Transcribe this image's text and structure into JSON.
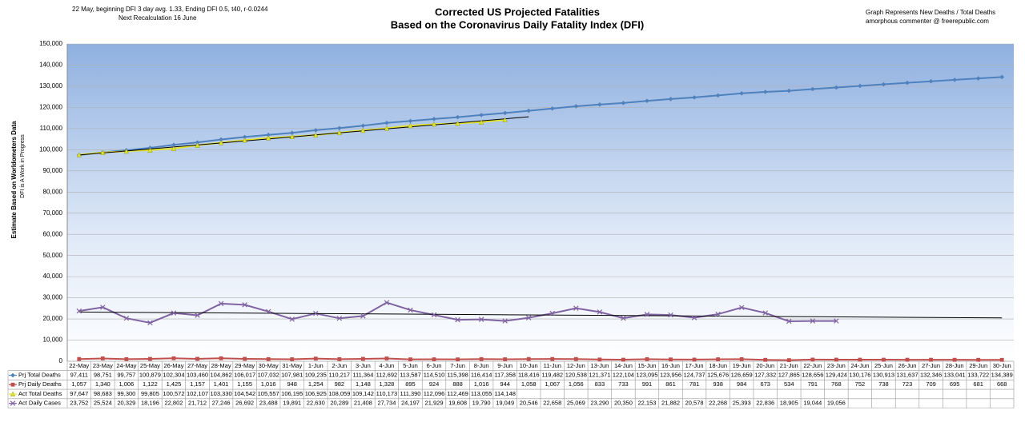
{
  "chart_data": {
    "type": "line",
    "title": "Corrected US Projected Fatalities",
    "subtitle": "Based on the Coronavirus Daily Fatality Index (DFI)",
    "annotations": [
      "22 May, beginning DFI  3 day avg. 1.33, Ending DFI  0.5,  t40, r-0.0244",
      "Next Recalculation 16 June",
      "Graph  Represents New Deaths / Total Deaths",
      "amorphous commenter  @  freerepublic.com"
    ],
    "ylabel": "Estimate Based on Worldometers Data",
    "ylabel_sub": "DFI is A Work in Progress",
    "ylim": [
      0,
      150000
    ],
    "yticks": [
      0,
      {
        "value": 10000,
        "label": "10,000"
      },
      {
        "value": 20000,
        "label": "20,000"
      },
      {
        "value": 30000,
        "label": "30,000"
      },
      {
        "value": 40000,
        "label": "40,000"
      },
      {
        "value": 50000,
        "label": "50,000"
      },
      {
        "value": 60000,
        "label": "60,000"
      },
      {
        "value": 70000,
        "label": "70,000"
      },
      {
        "value": 80000,
        "label": "80,000"
      },
      {
        "value": 90000,
        "label": "90,000"
      },
      {
        "value": 100000,
        "label": "100,000"
      },
      {
        "value": 110000,
        "label": "110,000"
      },
      {
        "value": 120000,
        "label": "120,000"
      },
      {
        "value": 130000,
        "label": "130,000"
      },
      {
        "value": 140000,
        "label": "140,000"
      },
      {
        "value": 150000,
        "label": "150,000"
      }
    ],
    "grid": true,
    "categories": [
      "22-May",
      "23-May",
      "24-May",
      "25-May",
      "26-May",
      "27-May",
      "28-May",
      "29-May",
      "30-May",
      "31-May",
      "1-Jun",
      "2-Jun",
      "3-Jun",
      "4-Jun",
      "5-Jun",
      "6-Jun",
      "7-Jun",
      "8-Jun",
      "9-Jun",
      "10-Jun",
      "11-Jun",
      "12-Jun",
      "13-Jun",
      "14-Jun",
      "15-Jun",
      "16-Jun",
      "17-Jun",
      "18-Jun",
      "19-Jun",
      "20-Jun",
      "21-Jun",
      "22-Jun",
      "23-Jun",
      "24-Jun",
      "25-Jun",
      "26-Jun",
      "27-Jun",
      "28-Jun",
      "29-Jun",
      "30-Jun"
    ],
    "series": [
      {
        "name": "Prj Total Deaths",
        "color": "#4f81bd",
        "marker": "diamond",
        "values": [
          97411,
          98751,
          99757,
          100879,
          102304,
          103460,
          104862,
          106017,
          107032,
          107981,
          109235,
          110217,
          111364,
          112692,
          113587,
          114510,
          115398,
          116414,
          117358,
          118416,
          119482,
          120538,
          121371,
          122104,
          123095,
          123956,
          124737,
          125676,
          126659,
          127332,
          127865,
          128656,
          129424,
          130176,
          130913,
          131637,
          132346,
          133041,
          133722,
          134389
        ],
        "value_labels": [
          "97,411",
          "98,751",
          "99,757",
          "100,879",
          "102,304",
          "103,460",
          "104,862",
          "106,017",
          "107,032",
          "107,981",
          "109,235",
          "110,217",
          "111,364",
          "112,692",
          "113,587",
          "114,510",
          "115,398",
          "116,414",
          "117,358",
          "118,416",
          "119,482",
          "120,538",
          "121,371",
          "122,104",
          "123,095",
          "123,956",
          "124,737",
          "125,676",
          "126,659",
          "127,332",
          "127,865",
          "128,656",
          "129,424",
          "130,176",
          "130,913",
          "131,637",
          "132,346",
          "133,041",
          "133,722",
          "134,389"
        ]
      },
      {
        "name": "Prj Daily Deaths",
        "color": "#c0504d",
        "marker": "square",
        "values": [
          1057,
          1340,
          1006,
          1122,
          1425,
          1157,
          1401,
          1155,
          1016,
          948,
          1254,
          982,
          1148,
          1328,
          895,
          924,
          888,
          1016,
          944,
          1058,
          1067,
          1056,
          833,
          733,
          991,
          861,
          781,
          938,
          984,
          673,
          534,
          791,
          768,
          752,
          738,
          723,
          709,
          695,
          681,
          668
        ],
        "value_labels": [
          "1,057",
          "1,340",
          "1,006",
          "1,122",
          "1,425",
          "1,157",
          "1,401",
          "1,155",
          "1,016",
          "948",
          "1,254",
          "982",
          "1,148",
          "1,328",
          "895",
          "924",
          "888",
          "1,016",
          "944",
          "1,058",
          "1,067",
          "1,056",
          "833",
          "733",
          "991",
          "861",
          "781",
          "938",
          "984",
          "673",
          "534",
          "791",
          "768",
          "752",
          "738",
          "723",
          "709",
          "695",
          "681",
          "668"
        ]
      },
      {
        "name": "Act Total Deaths",
        "color": "#e3e32e",
        "marker": "triangle",
        "trendline": true,
        "trend_forward": 1,
        "values": [
          97647,
          98683,
          99300,
          99805,
          100572,
          102107,
          103330,
          104542,
          105557,
          106195,
          106925,
          108059,
          109142,
          110173,
          111390,
          112096,
          112469,
          113055,
          114148,
          null,
          null,
          null,
          null,
          null,
          null,
          null,
          null,
          null,
          null,
          null,
          null,
          null,
          null,
          null,
          null,
          null,
          null,
          null,
          null,
          null
        ],
        "value_labels": [
          "97,647",
          "98,683",
          "99,300",
          "99,805",
          "100,572",
          "102,107",
          "103,330",
          "104,542",
          "105,557",
          "106,195",
          "106,925",
          "108,059",
          "109,142",
          "110,173",
          "111,390",
          "112,096",
          "112,469",
          "113,055",
          "114,148",
          null,
          null,
          null,
          null,
          null,
          null,
          null,
          null,
          null,
          null,
          null,
          null,
          null,
          null,
          null,
          null,
          null,
          null,
          null,
          null,
          null
        ]
      },
      {
        "name": "Act Daily Cases",
        "color": "#8064a2",
        "marker": "x",
        "trendline": true,
        "trend_forward": 7,
        "values": [
          23752,
          25524,
          20329,
          18196,
          22802,
          21712,
          27246,
          26692,
          23488,
          19891,
          22630,
          20289,
          21408,
          27734,
          24197,
          21929,
          19608,
          19790,
          19049,
          20546,
          22658,
          25069,
          23290,
          20350,
          22153,
          21882,
          20578,
          22268,
          25393,
          22836,
          18905,
          19044,
          19056,
          null,
          null,
          null,
          null,
          null,
          null,
          null
        ],
        "value_labels": [
          "23,752",
          "25,524",
          "20,329",
          "18,196",
          "22,802",
          "21,712",
          "27,246",
          "26,692",
          "23,488",
          "19,891",
          "22,630",
          "20,289",
          "21,408",
          "27,734",
          "24,197",
          "21,929",
          "19,608",
          "19,790",
          "19,049",
          "20,546",
          "22,658",
          "25,069",
          "23,290",
          "20,350",
          "22,153",
          "21,882",
          "20,578",
          "22,268",
          "25,393",
          "22,836",
          "18,905",
          "19,044",
          "19,056",
          null,
          null,
          null,
          null,
          null,
          null,
          null
        ]
      }
    ]
  }
}
